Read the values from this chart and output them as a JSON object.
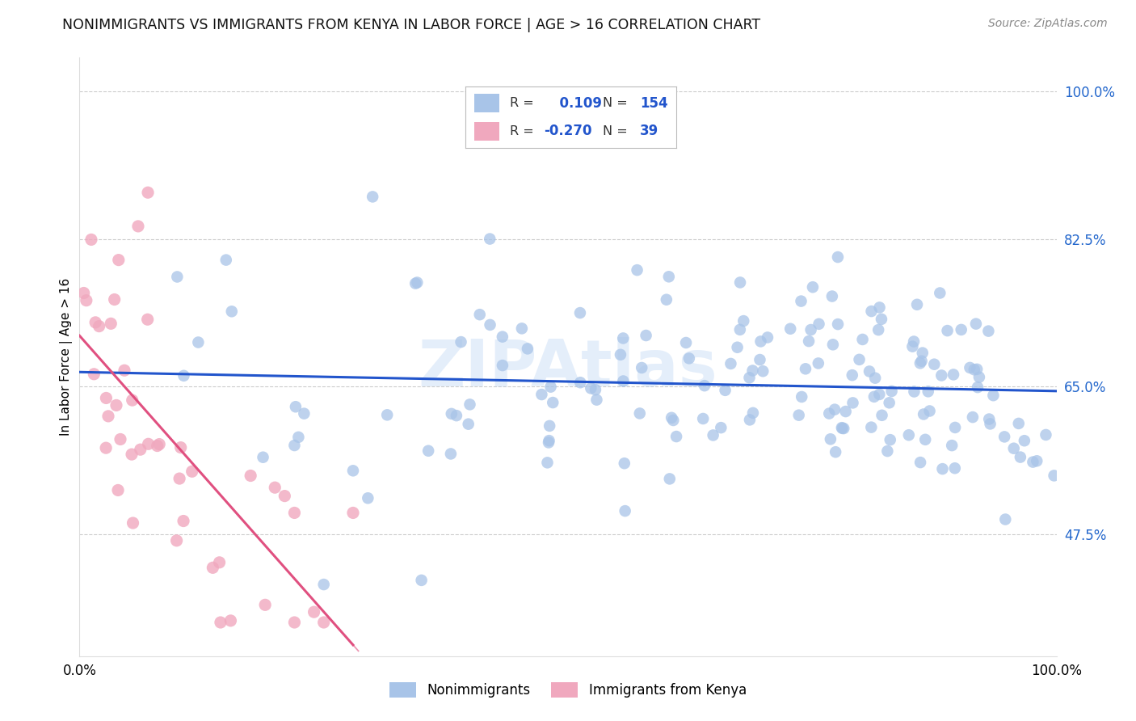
{
  "title": "NONIMMIGRANTS VS IMMIGRANTS FROM KENYA IN LABOR FORCE | AGE > 16 CORRELATION CHART",
  "source": "Source: ZipAtlas.com",
  "ylabel": "In Labor Force | Age > 16",
  "xmin": 0.0,
  "xmax": 1.0,
  "ymin": 0.33,
  "ymax": 1.04,
  "yticks": [
    0.475,
    0.65,
    0.825,
    1.0
  ],
  "ytick_labels": [
    "47.5%",
    "65.0%",
    "82.5%",
    "100.0%"
  ],
  "nonimmigrant_color": "#a8c4e8",
  "immigrant_color": "#f0a8be",
  "trend_nonimmigrant_color": "#2255cc",
  "trend_immigrant_color": "#e05080",
  "R_nonimmigrant": 0.109,
  "N_nonimmigrant": 154,
  "R_immigrant": -0.27,
  "N_immigrant": 39,
  "watermark": "ZIPAtlas",
  "legend_label_nonimmigrant": "Nonimmigrants",
  "legend_label_immigrant": "Immigrants from Kenya"
}
